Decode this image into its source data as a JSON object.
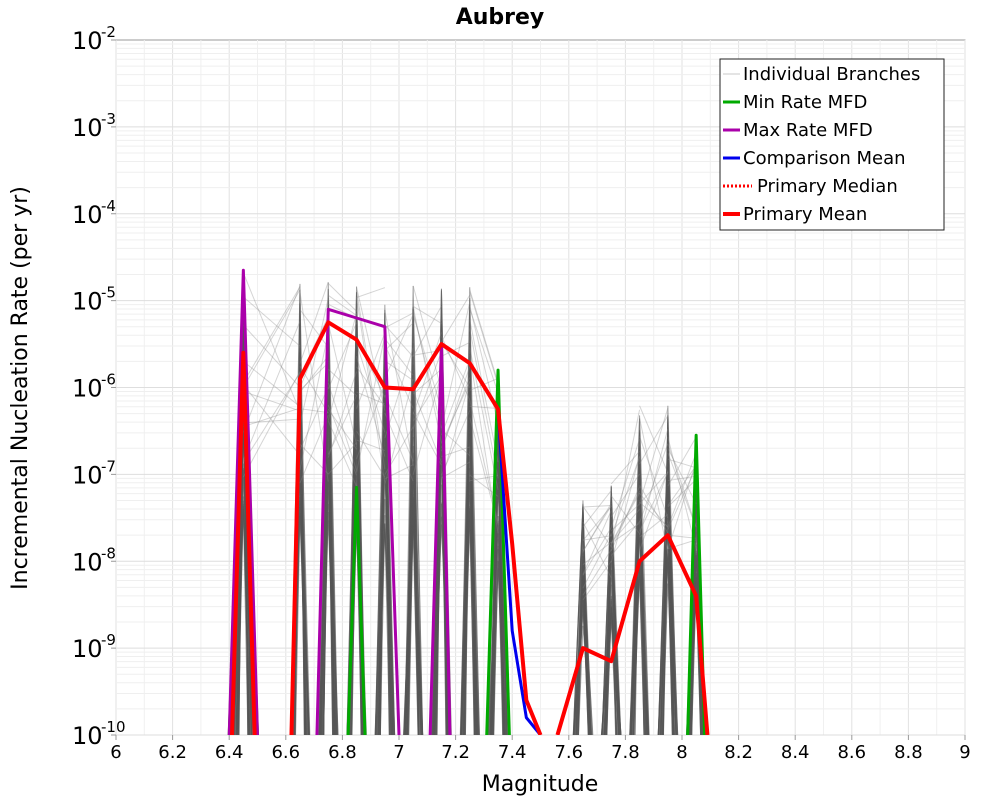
{
  "chart_data": {
    "type": "line",
    "title": "Aubrey",
    "xlabel": "Magnitude",
    "ylabel": "Incremental Nucleation Rate (per yr)",
    "xlim": [
      6,
      9
    ],
    "ylim_log10": [
      -10,
      -2
    ],
    "x_ticks": [
      "6",
      "6.2",
      "6.4",
      "6.6",
      "6.8",
      "7",
      "7.2",
      "7.4",
      "7.6",
      "7.8",
      "8",
      "8.2",
      "8.4",
      "8.6",
      "8.8",
      "9"
    ],
    "y_ticks": [
      {
        "base": "10",
        "exp": "-10"
      },
      {
        "base": "10",
        "exp": "-9"
      },
      {
        "base": "10",
        "exp": "-8"
      },
      {
        "base": "10",
        "exp": "-7"
      },
      {
        "base": "10",
        "exp": "-6"
      },
      {
        "base": "10",
        "exp": "-5"
      },
      {
        "base": "10",
        "exp": "-4"
      },
      {
        "base": "10",
        "exp": "-3"
      },
      {
        "base": "10",
        "exp": "-2"
      }
    ],
    "grid": true,
    "legend_position": "top-right",
    "legend": [
      {
        "label": "Individual Branches",
        "color": "#c8c8c8",
        "style": "thin"
      },
      {
        "label": "Min Rate MFD",
        "color": "#00aa00",
        "style": "solid"
      },
      {
        "label": "Max Rate MFD",
        "color": "#aa00aa",
        "style": "solid"
      },
      {
        "label": "Comparison Mean",
        "color": "#0000ee",
        "style": "solid"
      },
      {
        "label": "Primary Median",
        "color": "#ff0000",
        "style": "dotted"
      },
      {
        "label": "Primary Mean",
        "color": "#ff0000",
        "style": "thick"
      }
    ],
    "series": [
      {
        "name": "Min Rate MFD",
        "color": "#00aa00",
        "segments": [
          [
            [
              6.4,
              -10
            ],
            [
              6.45,
              -5.6
            ],
            [
              6.5,
              -10
            ]
          ],
          [
            [
              6.82,
              -10
            ],
            [
              6.85,
              -7.15
            ],
            [
              6.88,
              -10
            ]
          ],
          [
            [
              7.31,
              -10
            ],
            [
              7.35,
              -5.8
            ],
            [
              7.39,
              -10
            ]
          ],
          [
            [
              8.02,
              -10
            ],
            [
              8.05,
              -6.55
            ],
            [
              8.08,
              -10
            ]
          ]
        ]
      },
      {
        "name": "Max Rate MFD",
        "color": "#aa00aa",
        "segments": [
          [
            [
              6.4,
              -10
            ],
            [
              6.45,
              -4.65
            ],
            [
              6.5,
              -10
            ]
          ],
          [
            [
              6.71,
              -10
            ],
            [
              6.75,
              -5.1
            ],
            [
              6.85,
              -5.2
            ],
            [
              6.95,
              -5.3
            ],
            [
              7.0,
              -10
            ]
          ],
          [
            [
              7.11,
              -10
            ],
            [
              7.15,
              -5.5
            ],
            [
              7.18,
              -10
            ]
          ]
        ]
      },
      {
        "name": "Comparison Mean",
        "color": "#0000ee",
        "segments": [
          [
            [
              7.35,
              -6.25
            ],
            [
              7.4,
              -8.8
            ],
            [
              7.45,
              -9.8
            ],
            [
              7.5,
              -10
            ]
          ],
          [
            [
              7.65,
              -9.0
            ],
            [
              7.75,
              -9.15
            ]
          ]
        ]
      },
      {
        "name": "Primary Mean",
        "color": "#ff0000",
        "segments": [
          [
            [
              6.41,
              -10
            ],
            [
              6.45,
              -5.6
            ],
            [
              6.49,
              -10
            ]
          ],
          [
            [
              6.62,
              -10
            ],
            [
              6.65,
              -5.9
            ],
            [
              6.75,
              -5.25
            ],
            [
              6.85,
              -5.45
            ],
            [
              6.95,
              -6.0
            ],
            [
              7.05,
              -6.02
            ],
            [
              7.15,
              -5.5
            ],
            [
              7.25,
              -5.72
            ],
            [
              7.35,
              -6.25
            ],
            [
              7.4,
              -7.8
            ],
            [
              7.45,
              -9.6
            ],
            [
              7.5,
              -10
            ]
          ],
          [
            [
              7.56,
              -10
            ],
            [
              7.65,
              -9.0
            ],
            [
              7.75,
              -9.15
            ],
            [
              7.85,
              -8.0
            ],
            [
              7.95,
              -7.7
            ],
            [
              8.05,
              -8.4
            ],
            [
              8.09,
              -10
            ]
          ]
        ]
      }
    ],
    "branch_envelope": {
      "name": "Individual Branches",
      "peaks": [
        {
          "x": 6.45,
          "lo": -10,
          "hi": -4.6
        },
        {
          "x": 6.65,
          "lo": -10,
          "hi": -4.8
        },
        {
          "x": 6.75,
          "lo": -10,
          "hi": -4.78
        },
        {
          "x": 6.85,
          "lo": -10,
          "hi": -4.8
        },
        {
          "x": 6.95,
          "lo": -10,
          "hi": -4.85
        },
        {
          "x": 7.05,
          "lo": -10,
          "hi": -4.82
        },
        {
          "x": 7.15,
          "lo": -10,
          "hi": -4.85
        },
        {
          "x": 7.25,
          "lo": -10,
          "hi": -4.82
        },
        {
          "x": 7.35,
          "lo": -10,
          "hi": -5.8
        },
        {
          "x": 7.65,
          "lo": -10,
          "hi": -7.3
        },
        {
          "x": 7.75,
          "lo": -10,
          "hi": -7.1
        },
        {
          "x": 7.85,
          "lo": -10,
          "hi": -6.2
        },
        {
          "x": 7.95,
          "lo": -10,
          "hi": -6.2
        },
        {
          "x": 8.05,
          "lo": -10,
          "hi": -6.5
        }
      ]
    }
  }
}
